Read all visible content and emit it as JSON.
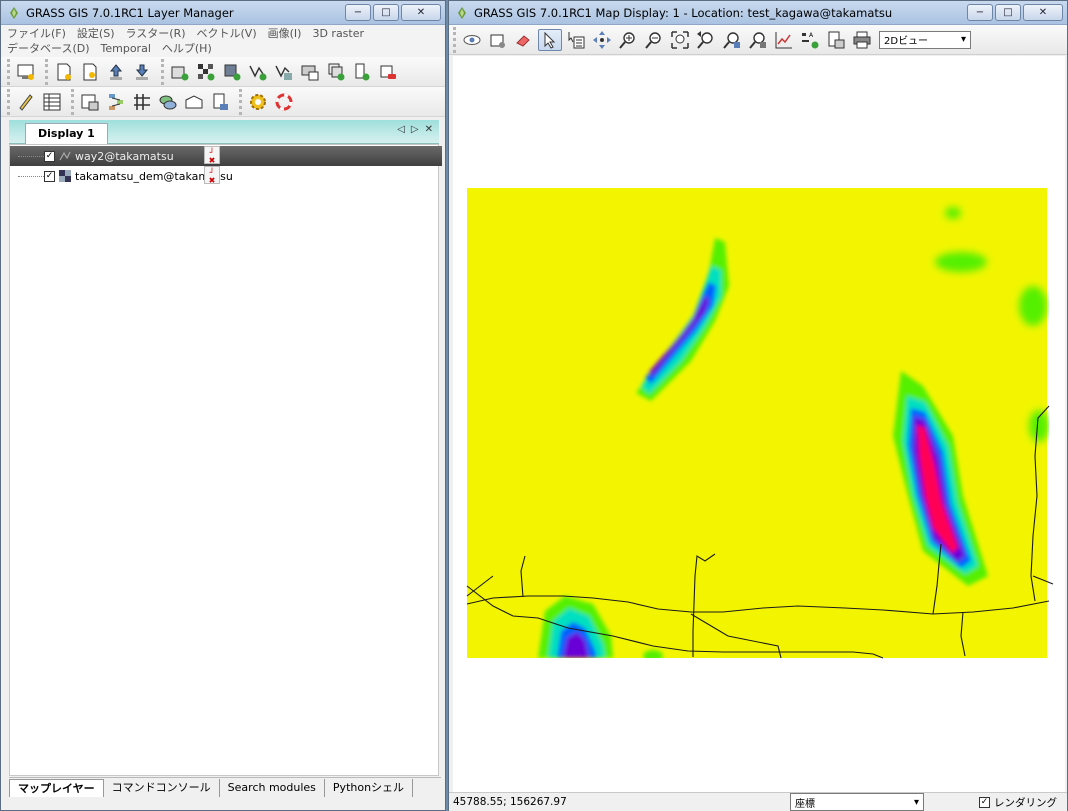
{
  "layer_manager": {
    "title": "GRASS GIS 7.0.1RC1 Layer Manager",
    "window_buttons": [
      "−",
      "□",
      "✕"
    ],
    "menu": [
      "ファイル(F)",
      "設定(S)",
      "ラスター(R)",
      "ベクトル(V)",
      "画像(I)",
      "3D raster",
      "データベース(D)",
      "Temporal",
      "ヘルプ(H)"
    ],
    "display_tab": "Display 1",
    "layers": [
      {
        "name": "way2@takamatsu",
        "checked": "✓",
        "selected": true
      },
      {
        "name": "takamatsu_dem@takamatsu",
        "checked": "✓",
        "selected": false
      }
    ],
    "bottom_tabs": [
      "マップレイヤー",
      "コマンドコンソール",
      "Search modules",
      "Pythonシェル"
    ]
  },
  "map_display": {
    "title": "GRASS GIS 7.0.1RC1 Map Display: 1  - Location: test_kagawa@takamatsu",
    "window_buttons": [
      "−",
      "□",
      "✕"
    ],
    "view_select": "2Dビュー",
    "coordinates": "45788.55; 156267.97",
    "status_mode": "座標",
    "render_label": "レンダリング",
    "render_checked": "✓"
  },
  "colors": {
    "dem_low": "#f3f500",
    "dem_mid1": "#55f000",
    "dem_mid2": "#00e0c0",
    "dem_mid3": "#0060ff",
    "dem_high": "#6a00d8",
    "dem_peak": "#ff0055",
    "roads": "#1a1a1a"
  }
}
